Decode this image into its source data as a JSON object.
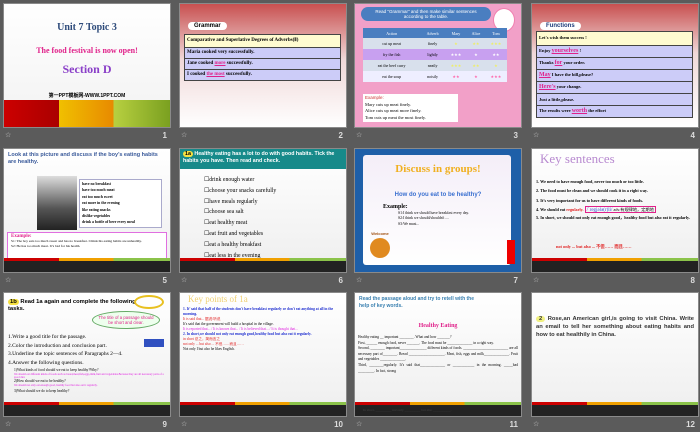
{
  "slides": [
    {
      "number": "1",
      "title": "Unit 7  Topic 3",
      "subtitle": "The food festival is now open!",
      "section": "Section D",
      "site": "第一PPT模板网-WWW.1PPT.COM"
    },
    {
      "number": "2",
      "badge": "Grammar",
      "header": "Comparative and Superlative Degrees of Adverbs(Ⅱ)",
      "rows": [
        {
          "pre": "Maria cooked very successfully.",
          "blank": "",
          "post": ""
        },
        {
          "pre": "Jane cooked",
          "blank": "more",
          "post": "successfully."
        },
        {
          "pre": "I cooked",
          "blank": "the most",
          "post": "successfully."
        }
      ]
    },
    {
      "number": "3",
      "instruction": "Read \"Grammar\" and then make similar sentences according to the table.",
      "columns": [
        "Action",
        "Adverb",
        "Mary",
        "Alice",
        "Tom"
      ],
      "rows": [
        [
          "cut up meat",
          "finely",
          "★",
          "★★",
          "★★★"
        ],
        [
          "fry the fish",
          "lightly",
          "★★★",
          "★",
          "★★"
        ],
        [
          "eat the beef curry",
          "neatly",
          "★★★",
          "★★",
          "★"
        ],
        [
          "eat the soup",
          "noisily",
          "★★",
          "★",
          "★★★"
        ]
      ],
      "example_label": "Example:",
      "examples": [
        "Mary cuts up meat finely.",
        "Alice cuts up meat more finely.",
        "Tom cuts up meat the most finely."
      ]
    },
    {
      "number": "4",
      "badge": "Functions",
      "rows": [
        {
          "pre": "Let's wish them success !",
          "blank": "",
          "post": ""
        },
        {
          "pre": "Enjoy",
          "blank": "yourselves",
          "post": "!"
        },
        {
          "pre": "Thanks",
          "blank": "for",
          "post": "your order."
        },
        {
          "pre": "",
          "blank": "May",
          "post": "I have the bill,please?"
        },
        {
          "pre": "",
          "blank": "Here's",
          "post": "your change."
        },
        {
          "pre": "Just a little,please.",
          "blank": "",
          "post": ""
        },
        {
          "pre": "The results were",
          "blank": "worth",
          "post": "the effort"
        }
      ]
    },
    {
      "number": "5",
      "title": "Look at this picture and discuss if the boy’s eating habits are healthy.",
      "habits": [
        "have no breakfast",
        "have too much meat",
        "eat too much sweet",
        "eat more in the evening",
        "like eating snacks",
        "dislike vegetables",
        "drink a bottle of beer every meal"
      ],
      "example_label": "Example:",
      "examples": [
        "S1: The boy eats too much sweet and has no breakfast. I think his eating habits are unhealthy.",
        "S2: He has too much meat. It’s bad for his health."
      ]
    },
    {
      "number": "6",
      "badge": "1a",
      "title": "Healthy eating has a lot to do with good habits. Tick the habits you have. Then read and check.",
      "items": [
        "drink enough water",
        "choose your snacks carefully",
        "have meals regularly",
        "choose sea salt",
        "eat healthy meat",
        "eat fruit and vegetables",
        "eat a healthy breakfast",
        "eat less in the evening"
      ]
    },
    {
      "number": "7",
      "title": "Discuss in groups!",
      "question": "How do you eat to be healthy?",
      "example_label": "Example:",
      "examples": [
        "S1:I think we should have breakfast every day.",
        "S2:I think we should/shouldn't ....",
        "S3:We must..."
      ],
      "sign": "Welcome"
    },
    {
      "number": "8",
      "title": "Key sentences",
      "sentences": [
        "1. We need to have enough food, never too much or too little.",
        "2. The food must be clean and we should cook it in a right way.",
        "3. It’s very important for us to have different kinds of foods.",
        "4. We should eat",
        "5. In short, we should not only eat enough good，healthy food but also eat it regularly."
      ],
      "highlight": "regularly.",
      "phonetic": "/ˈregjələ(r)li/",
      "gloss": "adv.有规律地，定期地",
      "pattern": "not only ... but also ... 不但…… 而且……"
    },
    {
      "number": "9",
      "badge": "1b",
      "title": "Read 1a again and complete the following tasks.",
      "callout": "The title of a passage should be short and clear.",
      "tasks": [
        "1.Write a good title for the passage.",
        "2.Color the introduction and conclusion part.",
        "3.Underline the topic sentences of Paragraphs 2—4.",
        "4.Answer the following questions."
      ],
      "questions": [
        {
          "q": "1)What kinds of food should we eat to keep healthy?Why?",
          "a": "We should eat different kinds of foods such as bread,meat,fish,eggs,milk,fruit and vegetables.Because they are all necessary parts of a good diet."
        },
        {
          "q": "2)How should we eat to be healthy?",
          "a": "We should not only eat enough good, healthy food but also eat it regularly."
        },
        {
          "q": "3)What should we do to keep healthy?",
          "a": ""
        }
      ]
    },
    {
      "number": "10",
      "title": "Key points of 1a",
      "lines": [
        "1. It’ said that half of the students don't have breakfast regularly or don't eat anything at all in the morning.",
        "It is said that... 据说/听说",
        "It's said that the government will build a hospital in the village.",
        "It is reported that... / It is known that... / It is believed that... / It is thought that...",
        "2. In short,we should not only eat enough good,healthy food but also eat it regularly.",
        "in short 总之，简而言之",
        "not only ... but also ... 不但……而且……",
        "Not only I but also he likes English."
      ]
    },
    {
      "number": "11",
      "title": "Read the passage aloud and try to retell with the help of key words.",
      "passage_title": "Healthy Eating",
      "lines": [
        "Healthy eating __ important ________. What and how _______?",
        "First, ______ enough food, never _______. The food must be ______________ in a right way.",
        "Second, ________ important_______________ different kinds of foods. _________________________ are all necessary part of________. Bread ____________________. Meat, fish, eggs and milk______________. Fruit and vegetables ______________.",
        "Third, ________regularly. It’s said that______________ or ____________ in the morning. _____bad _________. In fact, strong",
        "In short, _________ not only _________ but also __________."
      ]
    },
    {
      "number": "12",
      "badge": "2",
      "text": "Rose,an American girl,is going to visit China. Write an email to tell her something about eating habits and how to eat healthily in China."
    }
  ],
  "colors": {
    "background": "#5b5b5b",
    "accent_pink": "#e0218a",
    "teal": "#178a8a",
    "blue": "#1e5fa8"
  }
}
